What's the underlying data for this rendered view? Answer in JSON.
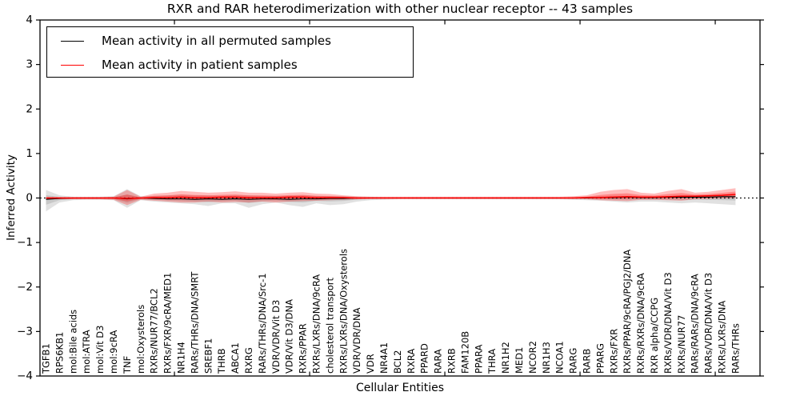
{
  "legend": {
    "items": [
      {
        "label": "Mean activity in all permuted samples",
        "color": "#000000"
      },
      {
        "label": "Mean activity in patient samples",
        "color": "#ff0000"
      }
    ]
  },
  "chart_data": {
    "type": "line",
    "title": "RXR and RAR heterodimerization with other nuclear receptor -- 43 samples",
    "xlabel": "Cellular Entities",
    "ylabel": "Inferred Activity",
    "ylim": [
      -4,
      4
    ],
    "yticks": [
      4,
      3,
      2,
      1,
      0,
      -1,
      -2,
      -3,
      -4
    ],
    "xtick_every": 10,
    "grid": false,
    "legend_position": "upper left",
    "zero_line": {
      "style": "dotted",
      "color": "#000000",
      "y": 0
    },
    "categories": [
      "TGFB1",
      "RPS6KB1",
      "mol:Bile acids",
      "mol:ATRA",
      "mol:Vit D3",
      "mol:9cRA",
      "TNF",
      "mol:Oxysterols",
      "RXRs/NUR77/BCL2",
      "RXRs/FXR/9cRA/MED1",
      "NR1H4",
      "RARs/THRs/DNA/SMRT",
      "SREBF1",
      "THRB",
      "ABCA1",
      "RXRG",
      "RARs/THRs/DNA/Src-1",
      "VDR/VDR/Vit D3",
      "VDR/Vit D3/DNA",
      "RXRs/PPAR",
      "RXRs/LXRs/DNA/9cRA",
      "cholesterol transport",
      "RXRs/LXRs/DNA/Oxysterols",
      "VDR/VDR/DNA",
      "VDR",
      "NR4A1",
      "BCL2",
      "RXRA",
      "PPARD",
      "RARA",
      "RXRB",
      "FAM120B",
      "PPARA",
      "THRA",
      "NR1H2",
      "MED1",
      "NCOR2",
      "NR1H3",
      "NCOA1",
      "RARG",
      "RARB",
      "PPARG",
      "RXRs/FXR",
      "RXRs/PPAR/9cRA/PGJ2/DNA",
      "RXRs/RXRs/DNA/9cRA",
      "RXR alpha/CCPG",
      "RXRs/VDR/DNA/Vit D3",
      "RXRs/NUR77",
      "RARs/RARs/DNA/9cRA",
      "RARs/VDR/DNA/Vit D3",
      "RXRs/LXRs/DNA",
      "RARs/THRs"
    ],
    "series": [
      {
        "name": "Mean activity in all permuted samples",
        "color": "#000000",
        "values": [
          -0.03,
          -0.01,
          0,
          0,
          0,
          0,
          -0.02,
          0,
          -0.01,
          -0.02,
          -0.02,
          -0.03,
          -0.02,
          -0.03,
          -0.02,
          -0.03,
          -0.02,
          -0.02,
          -0.03,
          -0.02,
          -0.02,
          -0.01,
          -0.01,
          0,
          0,
          0,
          0,
          0,
          0,
          0,
          0,
          0,
          0,
          0,
          0,
          0,
          0,
          0,
          0,
          0,
          0,
          0.01,
          0.01,
          0.02,
          0.01,
          0.01,
          0.02,
          0.02,
          0.02,
          0.02,
          0.03,
          0.03
        ]
      },
      {
        "name": "Mean activity in patient samples",
        "color": "#ff0000",
        "values": [
          0,
          0,
          0,
          0,
          0,
          0,
          -0.01,
          0,
          0.01,
          0.01,
          0.02,
          0.01,
          0.01,
          0.02,
          0.02,
          0.01,
          0.01,
          0.01,
          0.02,
          0.02,
          0.01,
          0.01,
          0.01,
          0,
          0,
          0,
          0,
          0,
          0,
          0,
          0,
          0,
          0,
          0,
          0,
          0,
          0,
          0,
          0,
          0,
          0.01,
          0.01,
          0.02,
          0.03,
          0.02,
          0.02,
          0.03,
          0.04,
          0.04,
          0.05,
          0.06,
          0.08
        ]
      }
    ],
    "bands": [
      {
        "name": "permuted samples range",
        "color": "#8a8a8a",
        "upper": [
          0.18,
          0.06,
          0.03,
          0.03,
          0.03,
          0.04,
          0.2,
          0.04,
          0.05,
          0.06,
          0.07,
          0.06,
          0.06,
          0.05,
          0.06,
          0.06,
          0.05,
          0.05,
          0.05,
          0.06,
          0.05,
          0.04,
          0.04,
          0.03,
          0.03,
          0.02,
          0.02,
          0.02,
          0.02,
          0.02,
          0.02,
          0.02,
          0.02,
          0.02,
          0.02,
          0.02,
          0.02,
          0.02,
          0.02,
          0.02,
          0.03,
          0.04,
          0.05,
          0.05,
          0.04,
          0.04,
          0.04,
          0.05,
          0.04,
          0.05,
          0.06,
          0.08
        ],
        "lower": [
          -0.3,
          -0.1,
          -0.05,
          -0.04,
          -0.04,
          -0.05,
          -0.22,
          -0.05,
          -0.08,
          -0.1,
          -0.12,
          -0.14,
          -0.18,
          -0.12,
          -0.12,
          -0.22,
          -0.14,
          -0.1,
          -0.16,
          -0.2,
          -0.12,
          -0.16,
          -0.14,
          -0.08,
          -0.05,
          -0.04,
          -0.03,
          -0.03,
          -0.03,
          -0.03,
          -0.03,
          -0.03,
          -0.03,
          -0.03,
          -0.03,
          -0.03,
          -0.03,
          -0.03,
          -0.03,
          -0.04,
          -0.05,
          -0.06,
          -0.08,
          -0.1,
          -0.08,
          -0.08,
          -0.1,
          -0.12,
          -0.1,
          -0.12,
          -0.14,
          -0.16
        ]
      },
      {
        "name": "patient samples range",
        "color": "#ff0000",
        "upper": [
          0.02,
          0.02,
          0.02,
          0.02,
          0.02,
          0.03,
          0.18,
          0.03,
          0.1,
          0.12,
          0.16,
          0.14,
          0.12,
          0.13,
          0.15,
          0.12,
          0.12,
          0.1,
          0.12,
          0.13,
          0.1,
          0.09,
          0.06,
          0.04,
          0.03,
          0.03,
          0.03,
          0.03,
          0.03,
          0.03,
          0.03,
          0.03,
          0.03,
          0.03,
          0.03,
          0.03,
          0.03,
          0.03,
          0.03,
          0.04,
          0.06,
          0.14,
          0.18,
          0.2,
          0.12,
          0.1,
          0.16,
          0.2,
          0.12,
          0.14,
          0.18,
          0.22
        ],
        "lower": [
          -0.03,
          -0.03,
          -0.03,
          -0.03,
          -0.03,
          -0.04,
          -0.16,
          -0.04,
          -0.06,
          -0.08,
          -0.1,
          -0.1,
          -0.08,
          -0.1,
          -0.09,
          -0.1,
          -0.08,
          -0.1,
          -0.08,
          -0.07,
          -0.06,
          -0.05,
          -0.04,
          -0.03,
          -0.02,
          -0.02,
          -0.02,
          -0.02,
          -0.02,
          -0.02,
          -0.02,
          -0.02,
          -0.02,
          -0.02,
          -0.02,
          -0.02,
          -0.02,
          -0.02,
          -0.02,
          -0.02,
          -0.03,
          -0.05,
          -0.06,
          -0.07,
          -0.04,
          -0.04,
          -0.05,
          -0.06,
          -0.03,
          -0.02,
          -0.01,
          -0.01
        ]
      }
    ]
  }
}
